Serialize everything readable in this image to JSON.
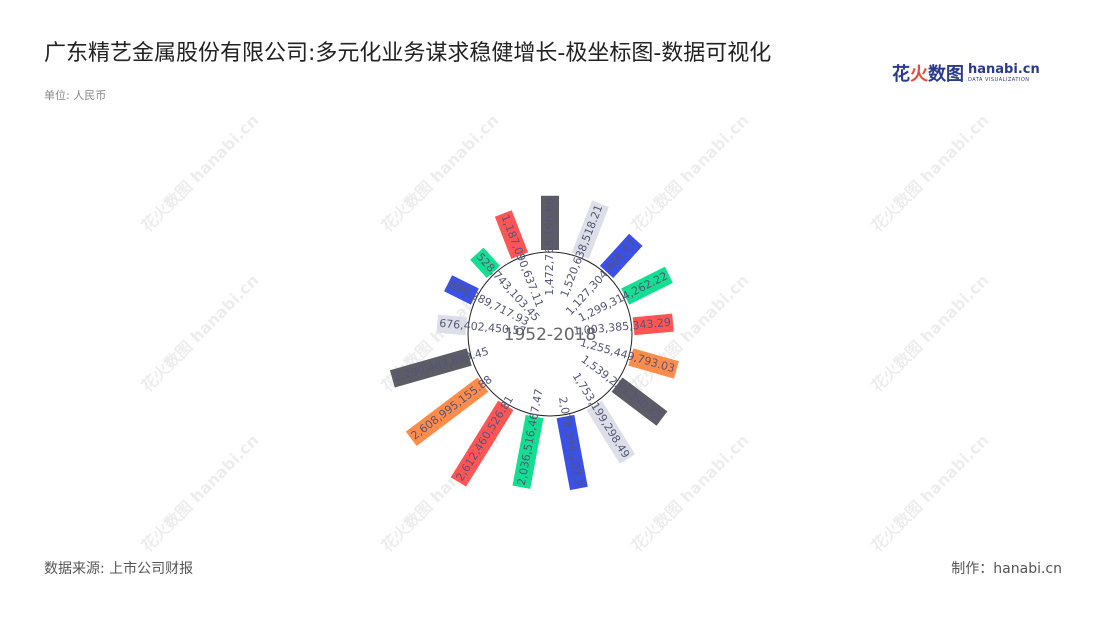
{
  "title": "广东精艺金属股份有限公司:多元化业务谋求稳健增长-极坐标图-数据可视化",
  "unit": "单位: 人民币",
  "source": "数据来源: 上市公司财报",
  "maker": "制作：hanabi.cn",
  "logo": {
    "cn_a": "花",
    "cn_b": "火",
    "cn_c": "数图",
    "en": "hanabi.cn",
    "en_small": "DATA VISUALIZATION"
  },
  "watermark_text": "花火数图 hanabi.cn",
  "chart_data": {
    "type": "bar",
    "coordinate": "polar",
    "center_label": "1952-2018",
    "values": [
      1472765190.66,
      1520638518.21,
      1127304405.67,
      1299314262.22,
      1003385343.29,
      1255449793.03,
      1539229390.85,
      1753199298.49,
      2075344202.2,
      2036516467.47,
      2612460526.81,
      2608995155.88,
      2290483899.45,
      676402450.57,
      696289717.93,
      528743103.45,
      1187090637.11
    ],
    "labels": [
      "1,472,765,190.66",
      "1,520,638,518.21",
      "1,127,304,405.67",
      "1,299,314,262.22",
      "1,003,385,343.29",
      "1,255,449,793.03",
      "1,539,229,390.85",
      "1,753,199,298.49",
      "2,075,344,202.2",
      "2,036,516,467.47",
      "2,612,460,526.81",
      "2,608,995,155.88",
      "2,290,483,899.45",
      "676,402,450.57",
      "696,289,717.93",
      "528,743,103.45",
      "1,187,090,637.11"
    ],
    "colors": [
      "#5b5c66",
      "#dcdfe8",
      "#3a50e6",
      "#12df8f",
      "#ff5555",
      "#ff8c4a"
    ],
    "angle_range_deg": [
      0,
      360
    ],
    "start": "top",
    "direction": "clockwise"
  }
}
